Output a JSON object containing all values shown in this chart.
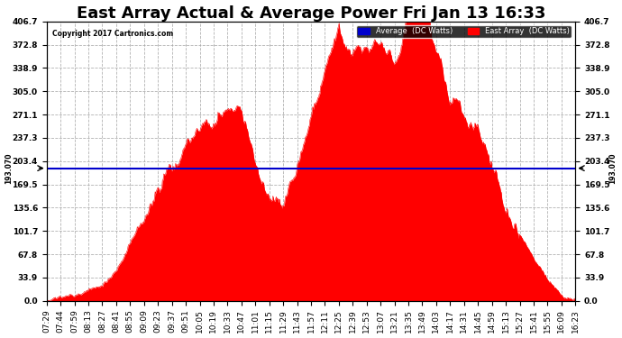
{
  "title": "East Array Actual & Average Power Fri Jan 13 16:33",
  "copyright": "Copyright 2017 Cartronics.com",
  "avg_label": "Average  (DC Watts)",
  "east_label": "East Array  (DC Watts)",
  "avg_value": 193.07,
  "avg_annotation": "193.070",
  "ylim": [
    0,
    406.7
  ],
  "yticks": [
    0.0,
    33.9,
    67.8,
    101.7,
    135.6,
    169.5,
    203.4,
    237.3,
    271.1,
    305.0,
    338.9,
    372.8,
    406.7
  ],
  "fill_color": "#FF0000",
  "avg_line_color": "#0000CC",
  "bg_color": "#FFFFFF",
  "grid_color": "#AAAAAA",
  "title_fontsize": 13,
  "tick_fontsize": 6.5,
  "xtick_times": [
    "07:29",
    "07:44",
    "07:59",
    "08:13",
    "08:27",
    "08:41",
    "08:55",
    "09:09",
    "09:23",
    "09:37",
    "09:51",
    "10:05",
    "10:19",
    "10:33",
    "10:47",
    "11:01",
    "11:15",
    "11:29",
    "11:43",
    "11:57",
    "12:11",
    "12:25",
    "12:39",
    "12:53",
    "13:07",
    "13:21",
    "13:35",
    "13:49",
    "14:03",
    "14:17",
    "14:31",
    "14:45",
    "14:59",
    "15:13",
    "15:27",
    "15:41",
    "15:55",
    "16:09",
    "16:23"
  ],
  "power_values": [
    2,
    5,
    8,
    14,
    22,
    45,
    80,
    120,
    155,
    175,
    210,
    235,
    260,
    280,
    295,
    235,
    190,
    155,
    200,
    250,
    315,
    355,
    345,
    375,
    380,
    345,
    400,
    410,
    368,
    295,
    268,
    248,
    198,
    138,
    98,
    58,
    28,
    8,
    2
  ]
}
